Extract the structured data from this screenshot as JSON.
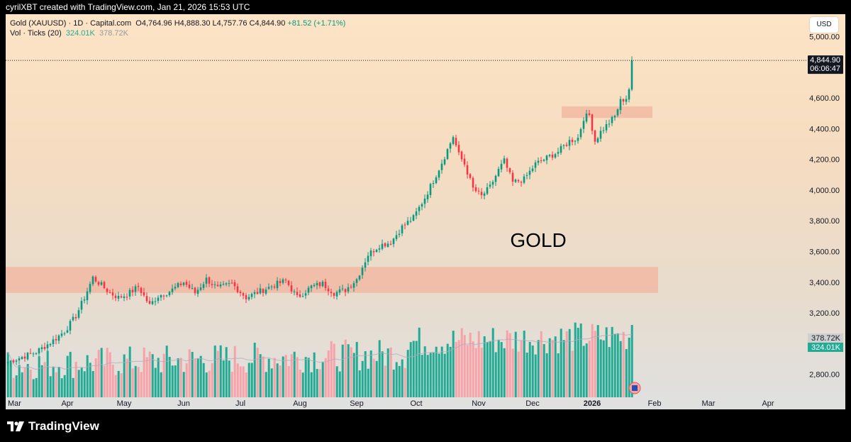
{
  "header": {
    "attribution": "cyrilXBT created with TradingView.com, Jan 21, 2026 15:53 UTC"
  },
  "legend": {
    "symbol": "Gold (XAUUSD) · 1D · Capital.com",
    "open": "O4,764.96",
    "high": "H4,888.30",
    "low": "L4,757.76",
    "close": "C4,844.90",
    "change": "+81.52 (+1.71%)",
    "vol_label": "Vol · Ticks (20)",
    "vol_current": "324.01K",
    "vol_avg": "378.72K"
  },
  "currency_button": "USD",
  "price_tag": {
    "price": "4,844.90",
    "countdown": "06:06:47"
  },
  "volume_tags": {
    "avg": "378.72K",
    "current": "324.01K"
  },
  "annotation": "GOLD",
  "footer": {
    "brand": "TradingView"
  },
  "colors": {
    "up": "#089981",
    "down": "#f23645",
    "vol_up": "#22ab94",
    "vol_down": "#f7a1a8",
    "zone": "#f2b49e"
  },
  "chart_data": {
    "type": "candlestick",
    "symbol": "Gold (XAUUSD)",
    "timeframe": "1D",
    "ylim": [
      2650,
      5100
    ],
    "y_ticks": [
      {
        "value": 5000,
        "label": "5,000.00"
      },
      {
        "value": 4600,
        "label": "4,600.00"
      },
      {
        "value": 4400,
        "label": "4,400.00"
      },
      {
        "value": 4200,
        "label": "4,200.00"
      },
      {
        "value": 4000,
        "label": "4,000.00"
      },
      {
        "value": 3800,
        "label": "3,800.00"
      },
      {
        "value": 3600,
        "label": "3,600.00"
      },
      {
        "value": 3400,
        "label": "3,400.00"
      },
      {
        "value": 3200,
        "label": "3,200.00"
      },
      {
        "value": 2800,
        "label": "2,800.00"
      }
    ],
    "x_ticks": [
      {
        "label": "Mar",
        "index": 0
      },
      {
        "label": "Apr",
        "index": 21
      },
      {
        "label": "May",
        "index": 41
      },
      {
        "label": "Jun",
        "index": 62
      },
      {
        "label": "Jul",
        "index": 82
      },
      {
        "label": "Aug",
        "index": 103
      },
      {
        "label": "Sep",
        "index": 123
      },
      {
        "label": "Oct",
        "index": 144
      },
      {
        "label": "Nov",
        "index": 166
      },
      {
        "label": "Dec",
        "index": 185
      },
      {
        "label": "2026",
        "index": 206,
        "bold": true
      },
      {
        "label": "Feb",
        "index": 228
      },
      {
        "label": "Mar",
        "index": 247
      },
      {
        "label": "Apr",
        "index": 268
      }
    ],
    "zones": [
      {
        "from_index": 0,
        "to_index": 230,
        "low": 3330,
        "high": 3500
      },
      {
        "from_index": 196,
        "to_index": 228,
        "low": 4470,
        "high": 4545
      }
    ],
    "last_price": 4844.9,
    "anchors": [
      [
        0,
        2880
      ],
      [
        10,
        2945
      ],
      [
        16,
        3020
      ],
      [
        20,
        3080
      ],
      [
        24,
        3180
      ],
      [
        27,
        3300
      ],
      [
        30,
        3430
      ],
      [
        33,
        3380
      ],
      [
        36,
        3330
      ],
      [
        39,
        3300
      ],
      [
        42,
        3320
      ],
      [
        46,
        3370
      ],
      [
        50,
        3250
      ],
      [
        53,
        3310
      ],
      [
        57,
        3340
      ],
      [
        62,
        3400
      ],
      [
        66,
        3330
      ],
      [
        70,
        3420
      ],
      [
        74,
        3360
      ],
      [
        79,
        3390
      ],
      [
        84,
        3300
      ],
      [
        90,
        3350
      ],
      [
        95,
        3390
      ],
      [
        98,
        3410
      ],
      [
        102,
        3300
      ],
      [
        107,
        3370
      ],
      [
        111,
        3390
      ],
      [
        115,
        3330
      ],
      [
        119,
        3350
      ],
      [
        123,
        3420
      ],
      [
        127,
        3580
      ],
      [
        131,
        3640
      ],
      [
        135,
        3660
      ],
      [
        139,
        3760
      ],
      [
        143,
        3820
      ],
      [
        147,
        3950
      ],
      [
        151,
        4100
      ],
      [
        154,
        4220
      ],
      [
        157,
        4350
      ],
      [
        159,
        4230
      ],
      [
        161,
        4170
      ],
      [
        164,
        4010
      ],
      [
        167,
        3960
      ],
      [
        170,
        4020
      ],
      [
        173,
        4130
      ],
      [
        175,
        4190
      ],
      [
        178,
        4050
      ],
      [
        182,
        4070
      ],
      [
        186,
        4170
      ],
      [
        190,
        4210
      ],
      [
        194,
        4250
      ],
      [
        198,
        4320
      ],
      [
        201,
        4340
      ],
      [
        203,
        4470
      ],
      [
        205,
        4490
      ],
      [
        207,
        4320
      ],
      [
        209,
        4380
      ],
      [
        212,
        4440
      ],
      [
        214,
        4480
      ],
      [
        216,
        4580
      ],
      [
        218,
        4600
      ],
      [
        219,
        4660
      ],
      [
        220,
        4844.9
      ]
    ],
    "volume": {
      "ylim": [
        0,
        330
      ],
      "current": 324.01,
      "average": 378.72
    }
  }
}
